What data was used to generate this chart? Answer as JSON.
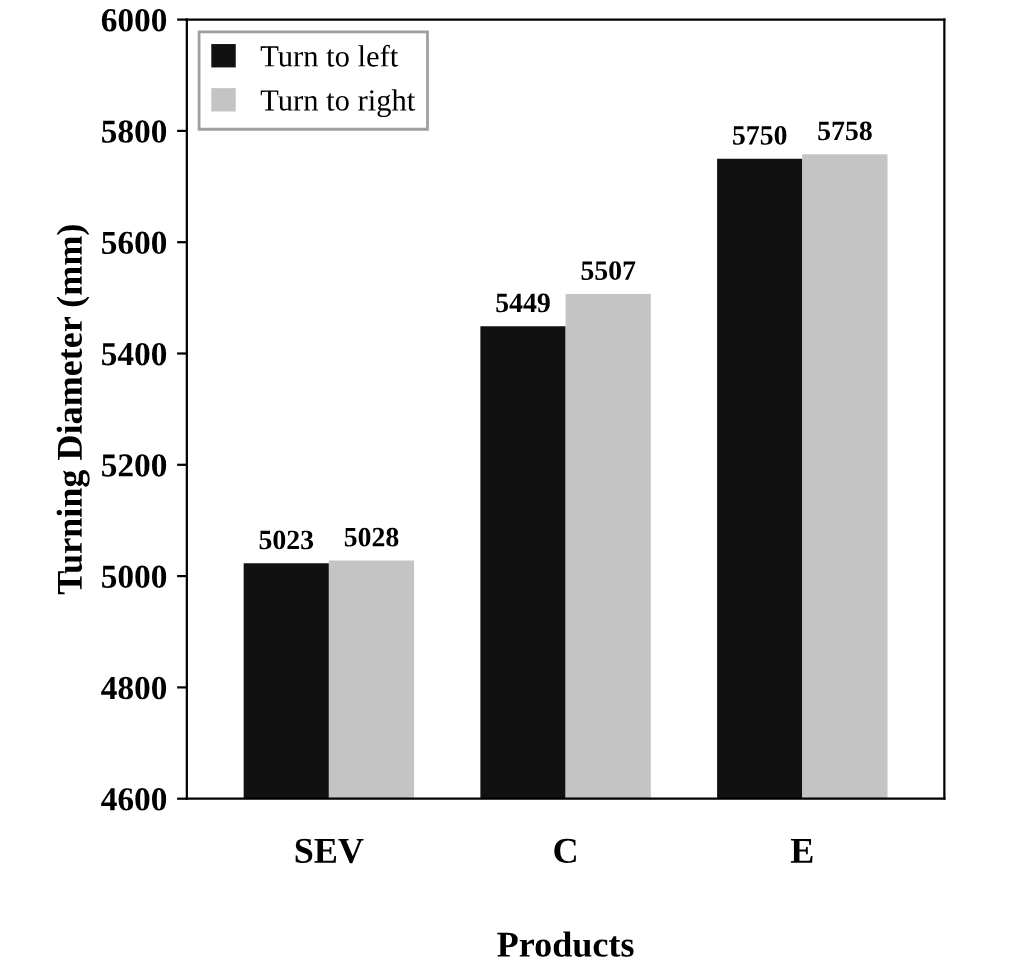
{
  "chart_data": {
    "type": "bar",
    "xlabel": "Products",
    "ylabel": "Turning Diameter (mm)",
    "categories": [
      "SEV",
      "C",
      "E"
    ],
    "series": [
      {
        "name": "Turn to left",
        "color": "#111111",
        "values": [
          5023,
          5449,
          5750
        ]
      },
      {
        "name": "Turn to right",
        "color": "#c4c4c4",
        "values": [
          5028,
          5507,
          5758
        ]
      }
    ],
    "ylim": [
      4600,
      6000
    ],
    "yticks": [
      4600,
      4800,
      5000,
      5200,
      5400,
      5600,
      5800,
      6000
    ],
    "data_labels": true,
    "legend": "top left",
    "grid": false
  }
}
